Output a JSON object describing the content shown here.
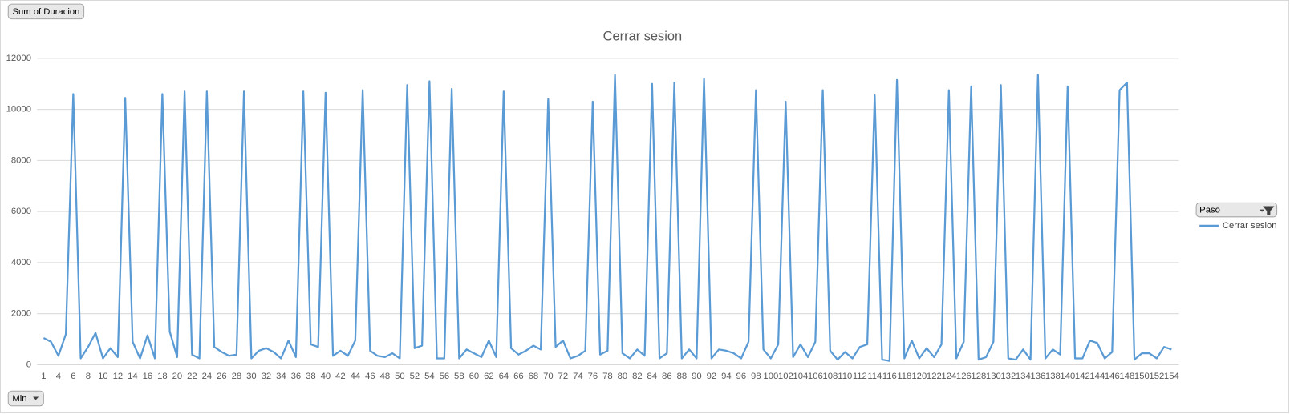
{
  "chart_data": {
    "type": "line",
    "title": "Cerrar sesion",
    "field_button": "Sum of Duracion",
    "axis_field_button": "Min",
    "legend_field_button": "Paso",
    "categories": [
      "1",
      null,
      "4",
      null,
      "6",
      null,
      "8",
      null,
      "10",
      null,
      "12",
      null,
      "14",
      null,
      "16",
      null,
      "18",
      null,
      "20",
      null,
      "22",
      null,
      "24",
      null,
      "26",
      null,
      "28",
      null,
      "30",
      null,
      "32",
      null,
      "34",
      null,
      "36",
      null,
      "38",
      null,
      "40",
      null,
      "42",
      null,
      "44",
      null,
      "46",
      null,
      "48",
      null,
      "50",
      null,
      "52",
      null,
      "54",
      null,
      "56",
      null,
      "58",
      null,
      "60",
      null,
      "62",
      null,
      "64",
      null,
      "66",
      null,
      "68",
      null,
      "70",
      null,
      "72",
      null,
      "74",
      null,
      "76",
      null,
      "78",
      null,
      "80",
      null,
      "82",
      null,
      "84",
      null,
      "86",
      null,
      "88",
      null,
      "90",
      null,
      "92",
      null,
      "94",
      null,
      "96",
      null,
      "98",
      null,
      "100",
      null,
      "102",
      null,
      "104",
      null,
      "106",
      null,
      "108",
      null,
      "110",
      null,
      "112",
      null,
      "114",
      null,
      "116",
      null,
      "118",
      null,
      "120",
      null,
      "122",
      null,
      "124",
      null,
      "126",
      null,
      "128",
      null,
      "130",
      null,
      "132",
      null,
      "134",
      null,
      "136",
      null,
      "138",
      null,
      "140",
      null,
      "142",
      null,
      "144",
      null,
      "146",
      null,
      "148",
      null,
      "150",
      null,
      "152",
      null,
      "154"
    ],
    "series": [
      {
        "name": "Cerrar sesion",
        "color": "#5b9bd5",
        "values": [
          1050,
          900,
          350,
          1200,
          10600,
          250,
          700,
          1250,
          250,
          650,
          300,
          10450,
          900,
          250,
          1150,
          250,
          10600,
          1300,
          300,
          10700,
          400,
          250,
          10700,
          700,
          500,
          350,
          400,
          10700,
          250,
          550,
          650,
          500,
          250,
          950,
          300,
          10700,
          800,
          700,
          10650,
          350,
          550,
          350,
          950,
          10750,
          550,
          350,
          300,
          450,
          250,
          10950,
          650,
          750,
          11100,
          250,
          250,
          10800,
          250,
          600,
          450,
          300,
          950,
          300,
          10700,
          650,
          400,
          550,
          750,
          600,
          10400,
          700,
          950,
          250,
          350,
          550,
          10300,
          400,
          550,
          11350,
          450,
          250,
          600,
          350,
          11000,
          250,
          450,
          11050,
          250,
          600,
          250,
          11200,
          250,
          600,
          550,
          450,
          250,
          900,
          10750,
          600,
          250,
          800,
          10300,
          300,
          800,
          300,
          900,
          10750,
          550,
          200,
          500,
          250,
          700,
          800,
          10550,
          200,
          150,
          11150,
          250,
          950,
          250,
          650,
          300,
          800,
          10750,
          250,
          900,
          10900,
          200,
          300,
          900,
          10950,
          250,
          200,
          600,
          200,
          11350,
          250,
          600,
          400,
          10900,
          250,
          250,
          950,
          850,
          250,
          500,
          10750,
          11050,
          200,
          450,
          450,
          250,
          700,
          600
        ]
      }
    ],
    "ylim": [
      0,
      12000
    ],
    "yticks": [
      0,
      2000,
      4000,
      6000,
      8000,
      10000,
      12000
    ],
    "grid": true,
    "legend": "right"
  }
}
